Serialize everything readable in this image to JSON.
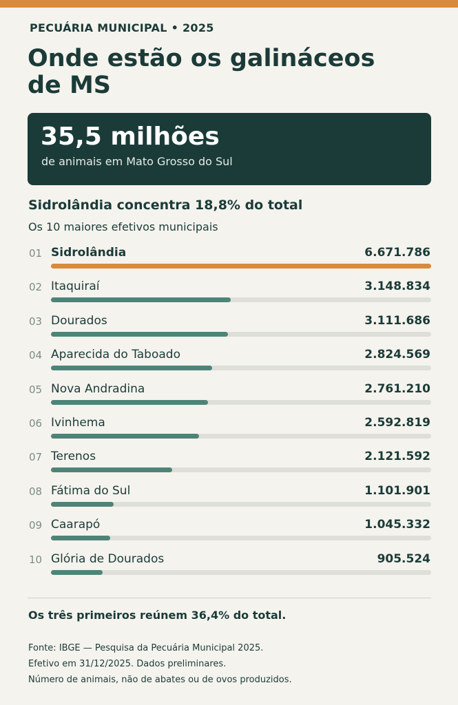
{
  "kicker": "PECUÁRIA MUNICIPAL • 2025",
  "headline": "Onde estão os galináceos de MS",
  "hero": {
    "value": "35,5 milhões",
    "label": "de animais em Mato Grosso do Sul"
  },
  "subhead": "Sidrolândia concentra 18,8% do total",
  "subtitle": "Os 10 maiores efetivos municipais",
  "note": "Os três primeiros reúnem 36,4% do total.",
  "footer": {
    "line1": "Fonte: IBGE — Pesquisa da Pecuária Municipal 2025.",
    "line2": "Efetivo em 31/12/2025. Dados preliminares.",
    "line3": "Número de animais, não de abates ou de ovos produzidos."
  },
  "colors": {
    "accent": "#d98a3a",
    "bar": "#4e8478",
    "track": "#dedfd8",
    "dark": "#1b3b38"
  },
  "chart_data": {
    "type": "bar",
    "orientation": "horizontal",
    "ranks": [
      "01",
      "02",
      "03",
      "04",
      "05",
      "06",
      "07",
      "08",
      "09",
      "10"
    ],
    "categories": [
      "Sidrolândia",
      "Itaquiraí",
      "Dourados",
      "Aparecida do Taboado",
      "Nova Andradina",
      "Ivinhema",
      "Terenos",
      "Fátima do Sul",
      "Caarapó",
      "Glória de Dourados"
    ],
    "values": [
      6671786,
      3148834,
      3111686,
      2824569,
      2761210,
      2592819,
      2121592,
      1101901,
      1045332,
      905524
    ],
    "value_labels": [
      "6.671.786",
      "3.148.834",
      "3.111.686",
      "2.824.569",
      "2.761.210",
      "2.592.819",
      "2.121.592",
      "1.101.901",
      "1.045.332",
      "905.524"
    ],
    "xlim": [
      0,
      6671786
    ],
    "highlight": "Sidrolândia",
    "grid": false,
    "legend": "none"
  }
}
